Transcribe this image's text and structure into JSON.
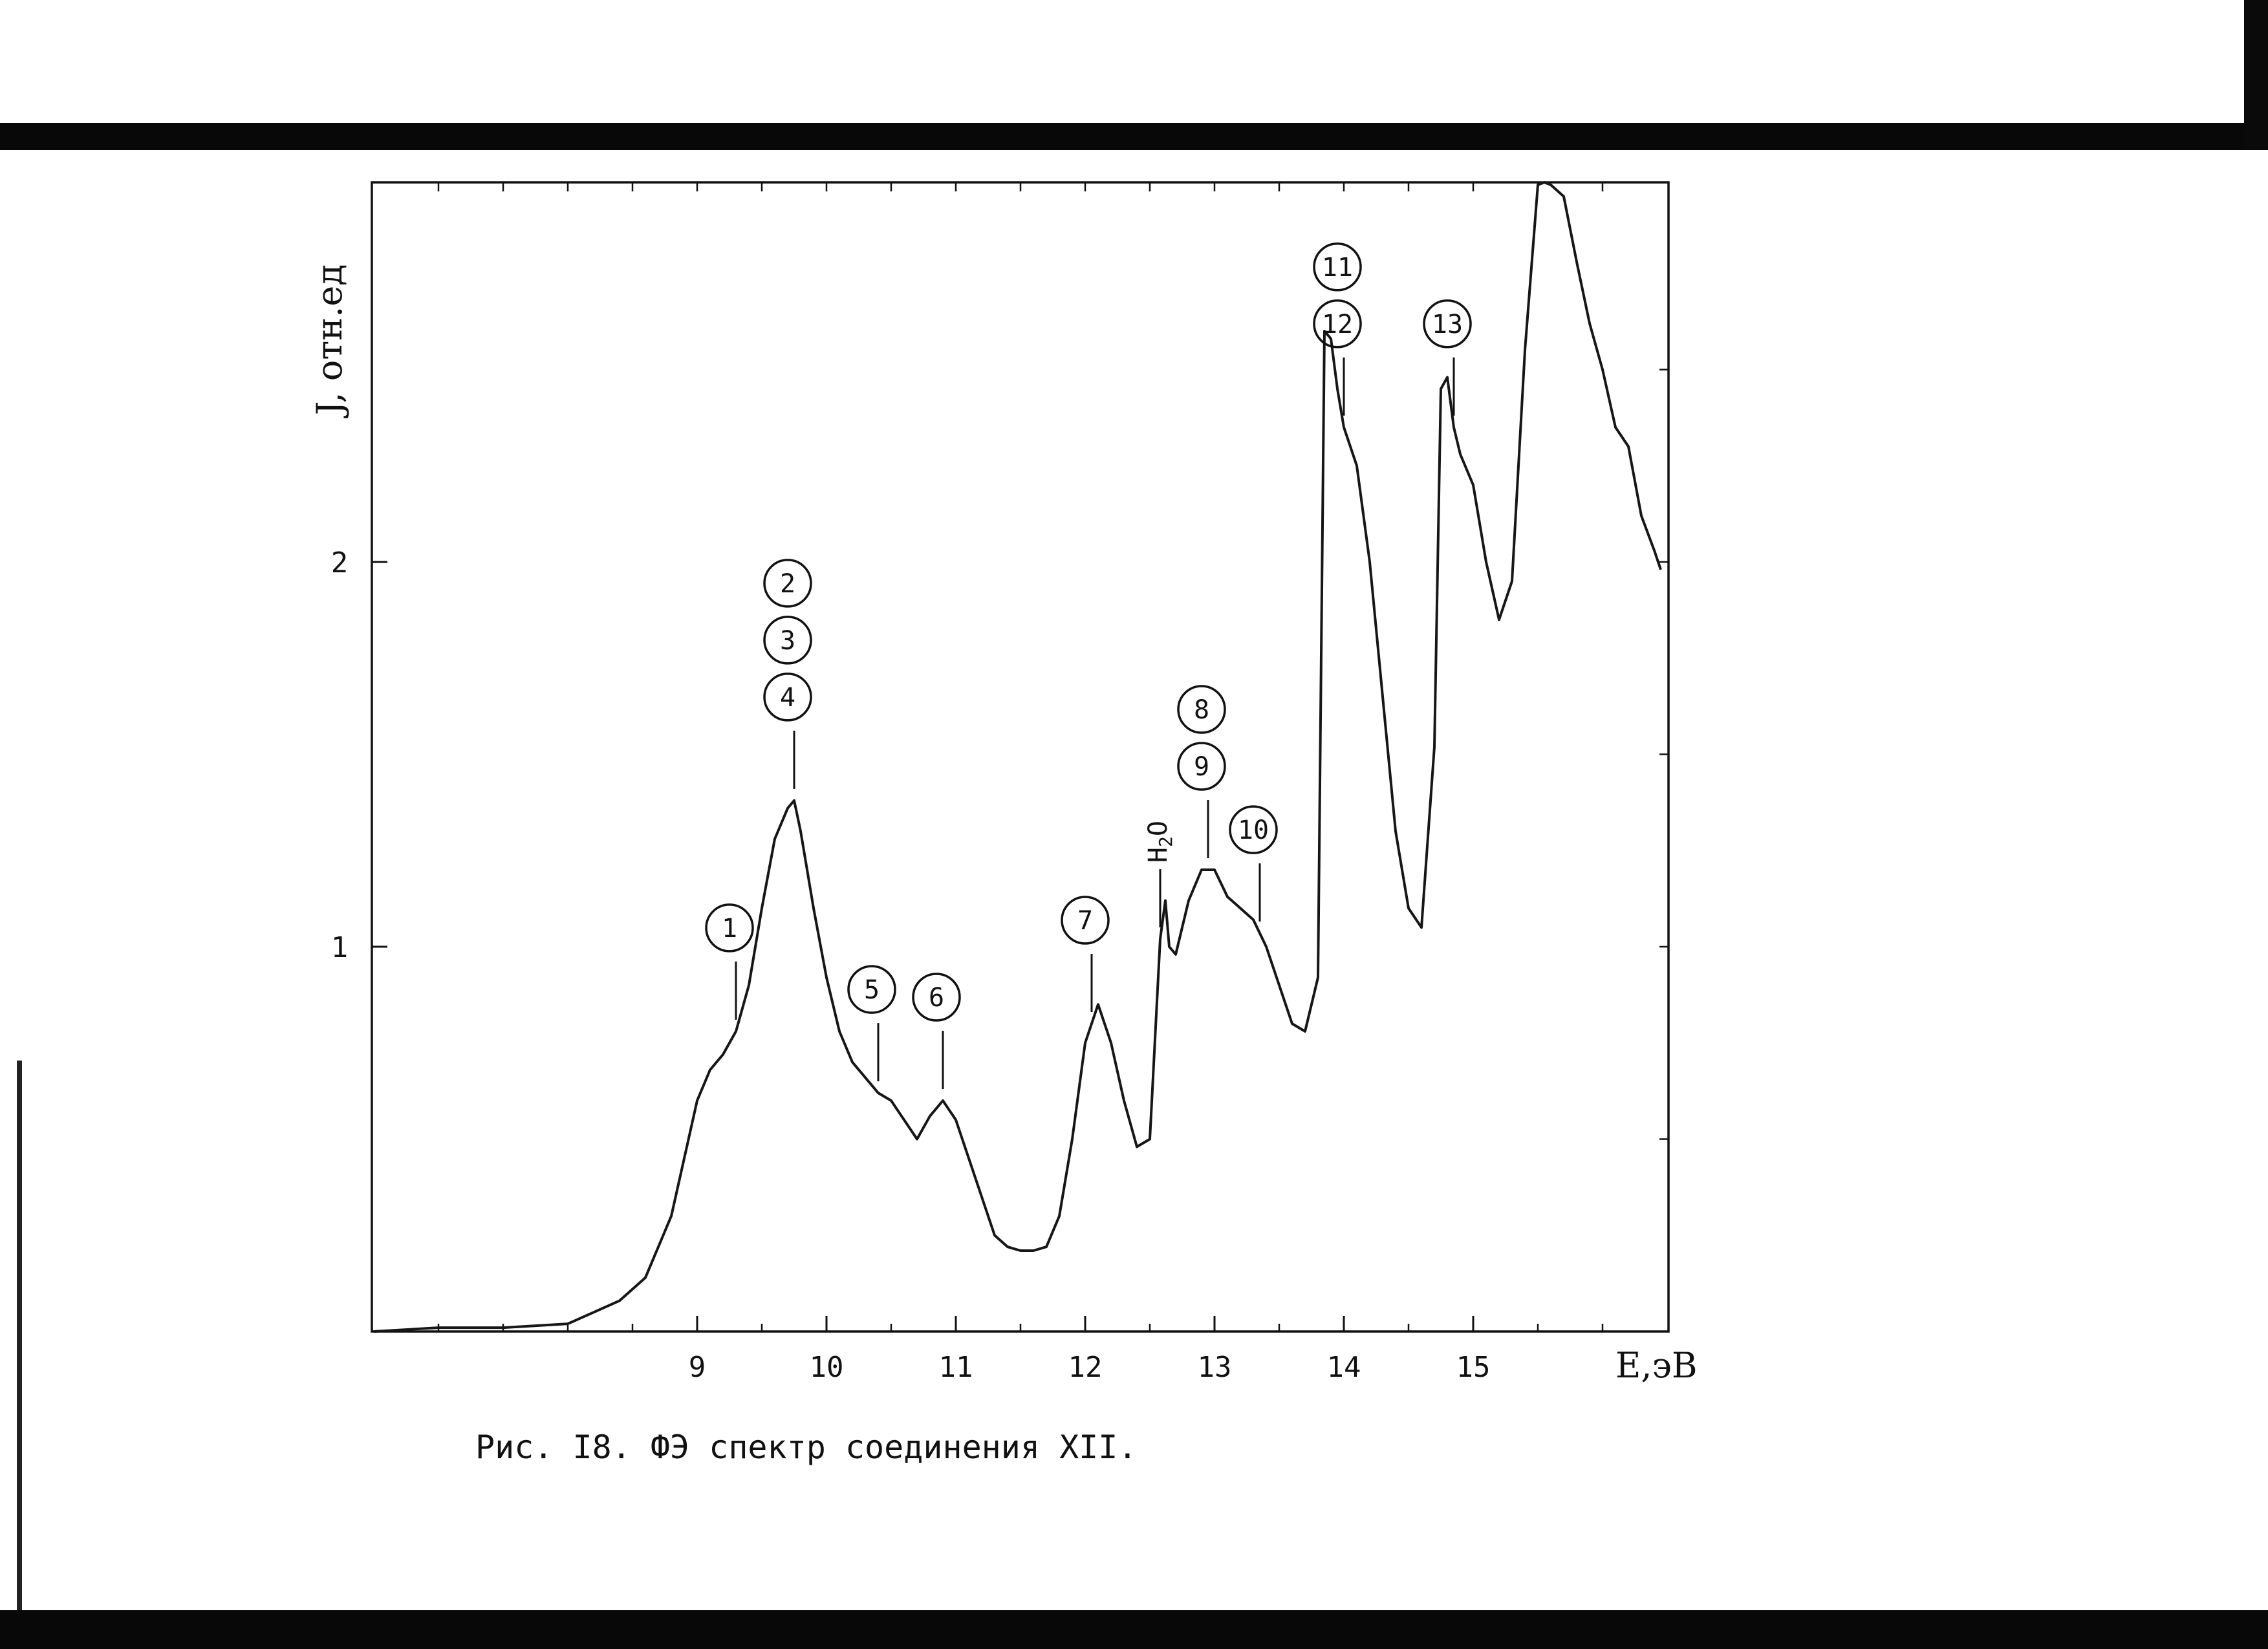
{
  "chart_data": {
    "type": "line",
    "title": "",
    "caption": "Рис. I8. ФЭ спектр соединения XII.",
    "xlabel": "E,эВ",
    "ylabel": "J, отн.ед",
    "xlim": [
      6.5,
      16.5
    ],
    "ylim": [
      0,
      3.0
    ],
    "x_ticks": [
      "9",
      "10",
      "11",
      "12",
      "13",
      "14",
      "15"
    ],
    "x_tick_values": [
      9,
      10,
      11,
      12,
      13,
      14,
      15
    ],
    "y_ticks": [
      "1",
      "2"
    ],
    "y_tick_values": [
      1,
      2
    ],
    "grid": false,
    "series": [
      {
        "x": [
          6.5,
          7.0,
          7.5,
          8.0,
          8.2,
          8.4,
          8.6,
          8.8,
          8.9,
          9.0,
          9.1,
          9.2,
          9.3,
          9.4,
          9.5,
          9.6,
          9.7,
          9.75,
          9.8,
          9.9,
          10.0,
          10.1,
          10.2,
          10.3,
          10.4,
          10.5,
          10.6,
          10.7,
          10.8,
          10.9,
          11.0,
          11.1,
          11.2,
          11.3,
          11.4,
          11.5,
          11.6,
          11.7,
          11.8,
          11.9,
          12.0,
          12.1,
          12.2,
          12.3,
          12.4,
          12.5,
          12.58,
          12.62,
          12.65,
          12.7,
          12.8,
          12.9,
          13.0,
          13.1,
          13.2,
          13.3,
          13.4,
          13.5,
          13.6,
          13.7,
          13.8,
          13.85,
          13.9,
          13.95,
          14.0,
          14.1,
          14.2,
          14.3,
          14.4,
          14.5,
          14.6,
          14.7,
          14.75,
          14.8,
          14.85,
          14.9,
          15.0,
          15.1,
          15.2,
          15.3,
          15.4,
          15.5,
          15.55,
          15.6,
          15.7,
          15.8,
          15.9,
          16.0,
          16.1,
          16.2,
          16.3,
          16.4,
          16.45
        ],
        "y": [
          0.0,
          0.01,
          0.01,
          0.02,
          0.05,
          0.08,
          0.14,
          0.3,
          0.45,
          0.6,
          0.68,
          0.72,
          0.78,
          0.9,
          1.1,
          1.28,
          1.36,
          1.38,
          1.3,
          1.1,
          0.92,
          0.78,
          0.7,
          0.66,
          0.62,
          0.6,
          0.55,
          0.5,
          0.56,
          0.6,
          0.55,
          0.45,
          0.35,
          0.25,
          0.22,
          0.21,
          0.21,
          0.22,
          0.3,
          0.5,
          0.75,
          0.85,
          0.75,
          0.6,
          0.48,
          0.5,
          1.02,
          1.12,
          1.0,
          0.98,
          1.12,
          1.2,
          1.2,
          1.13,
          1.1,
          1.07,
          1.0,
          0.9,
          0.8,
          0.78,
          0.92,
          2.6,
          2.58,
          2.45,
          2.35,
          2.25,
          2.0,
          1.65,
          1.3,
          1.1,
          1.05,
          1.52,
          2.45,
          2.48,
          2.35,
          2.28,
          2.2,
          2.0,
          1.85,
          1.95,
          2.55,
          2.98,
          3.0,
          2.98,
          2.95,
          2.78,
          2.62,
          2.5,
          2.35,
          2.3,
          2.12,
          2.03,
          1.98
        ]
      }
    ],
    "annotations": [
      {
        "labels": [
          "1"
        ],
        "x": 9.3
      },
      {
        "labels": [
          "2",
          "3",
          "4"
        ],
        "x": 9.75
      },
      {
        "labels": [
          "5"
        ],
        "x": 10.4
      },
      {
        "labels": [
          "6"
        ],
        "x": 10.9
      },
      {
        "labels": [
          "7"
        ],
        "x": 12.05
      },
      {
        "labels": [
          "H2O"
        ],
        "x": 12.58
      },
      {
        "labels": [
          "8",
          "9"
        ],
        "x": 12.95
      },
      {
        "labels": [
          "10"
        ],
        "x": 13.35
      },
      {
        "labels": [
          "11",
          "12"
        ],
        "x": 14.0
      },
      {
        "labels": [
          "13"
        ],
        "x": 14.85
      }
    ]
  }
}
